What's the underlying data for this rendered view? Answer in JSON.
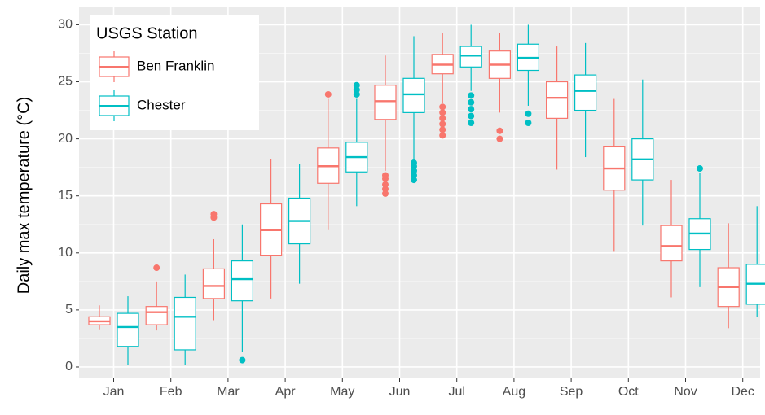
{
  "chart_data": {
    "type": "boxplot",
    "ylabel": "Daily max temperature (°C)",
    "legend_title": "USGS Station",
    "legend_position": "top-left",
    "grid": true,
    "categories": [
      "Jan",
      "Feb",
      "Mar",
      "Apr",
      "May",
      "Jun",
      "Jul",
      "Aug",
      "Sep",
      "Oct",
      "Nov",
      "Dec"
    ],
    "ylim": [
      -1.0,
      31.6
    ],
    "yticks": [
      0,
      5,
      10,
      15,
      20,
      25,
      30
    ],
    "series": [
      {
        "name": "Ben Franklin",
        "color": "#F8766D",
        "low": [
          3.3,
          3.2,
          4.1,
          6.0,
          12.0,
          17.2,
          23.1,
          22.3,
          17.3,
          10.1,
          6.1,
          3.4
        ],
        "q1": [
          3.7,
          3.7,
          6.0,
          9.8,
          16.1,
          21.7,
          25.7,
          25.3,
          21.8,
          15.5,
          9.3,
          5.3
        ],
        "median": [
          4.0,
          4.8,
          7.1,
          12.0,
          17.6,
          23.3,
          26.5,
          26.5,
          23.6,
          17.4,
          10.6,
          7.0
        ],
        "q3": [
          4.4,
          5.3,
          8.6,
          14.3,
          19.2,
          24.7,
          27.4,
          27.7,
          25.0,
          19.3,
          12.4,
          8.7
        ],
        "high": [
          5.4,
          7.5,
          11.2,
          18.2,
          23.5,
          27.3,
          29.3,
          29.3,
          28.1,
          23.5,
          16.4,
          12.6
        ],
        "outliers": [
          [],
          [
            8.7
          ],
          [
            13.1,
            13.4
          ],
          [],
          [
            23.9
          ],
          [
            15.2,
            15.6,
            16.0,
            16.5,
            16.8
          ],
          [
            20.3,
            20.8,
            21.3,
            21.8,
            22.3,
            22.8
          ],
          [
            20.0,
            20.7
          ],
          [],
          [],
          [],
          []
        ]
      },
      {
        "name": "Chester",
        "color": "#00BFC4",
        "low": [
          0.2,
          0.2,
          1.3,
          7.3,
          14.1,
          18.0,
          24.2,
          22.9,
          18.4,
          12.4,
          7.0,
          4.4
        ],
        "q1": [
          1.8,
          1.5,
          5.8,
          10.8,
          17.1,
          22.3,
          26.3,
          26.0,
          22.5,
          16.4,
          10.3,
          5.5
        ],
        "median": [
          3.5,
          4.4,
          7.7,
          12.8,
          18.4,
          23.9,
          27.3,
          27.1,
          24.2,
          18.2,
          11.7,
          7.3
        ],
        "q3": [
          4.7,
          6.1,
          9.3,
          14.8,
          19.7,
          25.3,
          28.1,
          28.3,
          25.6,
          20.0,
          13.0,
          9.0
        ],
        "high": [
          6.2,
          8.1,
          12.5,
          17.8,
          23.5,
          29.0,
          30.0,
          30.0,
          28.4,
          25.2,
          17.0,
          14.1
        ],
        "outliers": [
          [],
          [],
          [
            0.6
          ],
          [],
          [
            23.9,
            24.3,
            24.7
          ],
          [
            16.4,
            16.8,
            17.2,
            17.6,
            17.9
          ],
          [
            21.4,
            22.0,
            22.6,
            23.2,
            23.8
          ],
          [
            21.4,
            22.2
          ],
          [],
          [],
          [
            17.4
          ],
          []
        ]
      }
    ]
  }
}
